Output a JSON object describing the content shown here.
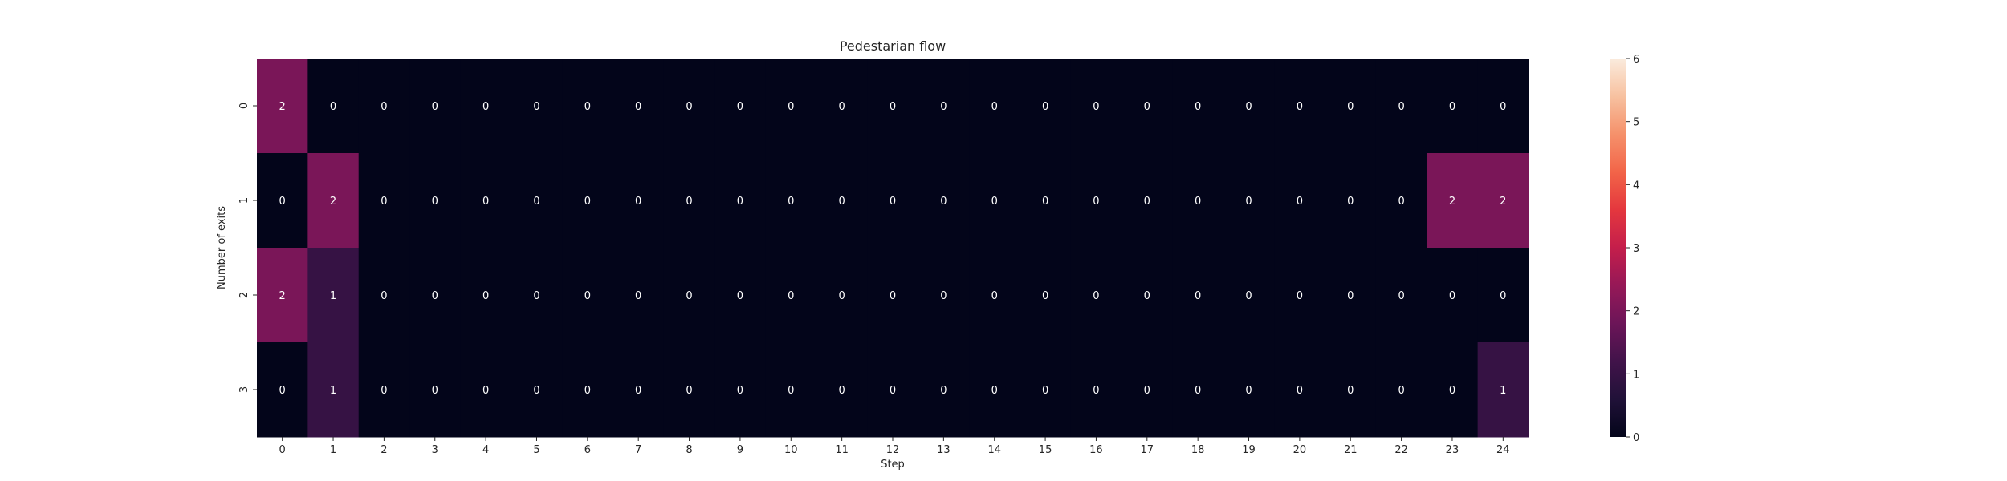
{
  "chart_data": {
    "type": "heatmap",
    "title": "Pedestarian flow",
    "xlabel": "Step",
    "ylabel": "Number of exits",
    "x_categories": [
      "0",
      "1",
      "2",
      "3",
      "4",
      "5",
      "6",
      "7",
      "8",
      "9",
      "10",
      "11",
      "12",
      "13",
      "14",
      "15",
      "16",
      "17",
      "18",
      "19",
      "20",
      "21",
      "22",
      "23",
      "24"
    ],
    "y_categories": [
      "0",
      "1",
      "2",
      "3"
    ],
    "values": [
      [
        2,
        0,
        0,
        0,
        0,
        0,
        0,
        0,
        0,
        0,
        0,
        0,
        0,
        0,
        0,
        0,
        0,
        0,
        0,
        0,
        0,
        0,
        0,
        0,
        0
      ],
      [
        0,
        2,
        0,
        0,
        0,
        0,
        0,
        0,
        0,
        0,
        0,
        0,
        0,
        0,
        0,
        0,
        0,
        0,
        0,
        0,
        0,
        0,
        0,
        2,
        2
      ],
      [
        2,
        1,
        0,
        0,
        0,
        0,
        0,
        0,
        0,
        0,
        0,
        0,
        0,
        0,
        0,
        0,
        0,
        0,
        0,
        0,
        0,
        0,
        0,
        0,
        0
      ],
      [
        0,
        1,
        0,
        0,
        0,
        0,
        0,
        0,
        0,
        0,
        0,
        0,
        0,
        0,
        0,
        0,
        0,
        0,
        0,
        0,
        0,
        0,
        0,
        0,
        1
      ]
    ],
    "annotations": true,
    "colorbar": {
      "min": 0,
      "max": 6,
      "ticks": [
        0,
        1,
        2,
        3,
        4,
        5,
        6
      ],
      "colormap": "rocket"
    },
    "grid": false
  }
}
